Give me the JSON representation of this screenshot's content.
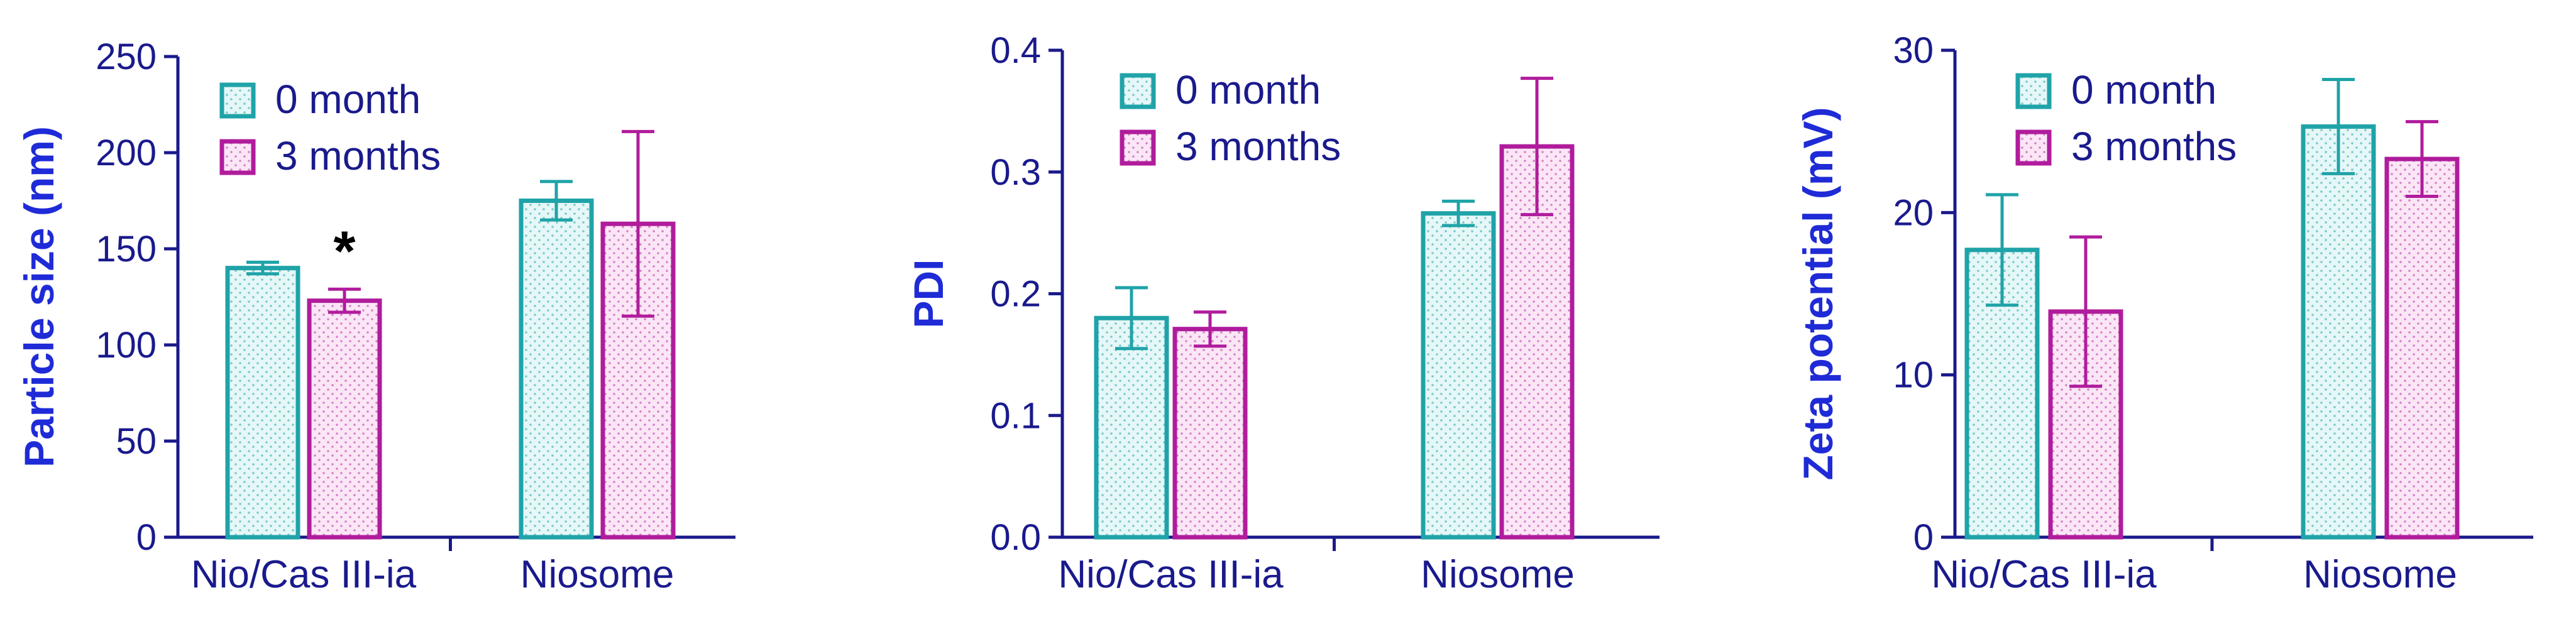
{
  "colors": {
    "axis": "#1a1a8c",
    "axis_title": "#1f2bd6",
    "series_0": "#1fa3a8",
    "series_1": "#b01c9c",
    "series_0_fill": "#e6f7f7",
    "series_1_fill": "#fbe6f6"
  },
  "chart_data": [
    {
      "type": "bar",
      "categories": [
        "Nio/Cas III-ia",
        "Niosome"
      ],
      "series": [
        {
          "name": "0 month",
          "values": [
            140,
            175
          ],
          "errors": [
            3,
            10
          ]
        },
        {
          "name": "3 months",
          "values": [
            123,
            163
          ],
          "errors": [
            6,
            48
          ]
        }
      ],
      "ylabel": "Particle size (nm)",
      "ylim": [
        0,
        250
      ],
      "yticks": [
        "0",
        "50",
        "100",
        "150",
        "200",
        "250"
      ],
      "yticks_values": [
        0,
        50,
        100,
        150,
        200,
        250
      ],
      "grid": false,
      "legend": "top-left",
      "annotations": [
        {
          "text": "*",
          "category": 0,
          "series": 1
        }
      ]
    },
    {
      "type": "bar",
      "categories": [
        "Nio/Cas III-ia",
        "Niosome"
      ],
      "series": [
        {
          "name": "0 month",
          "values": [
            0.18,
            0.266
          ],
          "errors": [
            0.025,
            0.01
          ]
        },
        {
          "name": "3 months",
          "values": [
            0.171,
            0.321
          ],
          "errors": [
            0.014,
            0.056
          ]
        }
      ],
      "ylabel": "PDI",
      "ylim": [
        0,
        0.4
      ],
      "yticks": [
        "0.0",
        "0.1",
        "0.2",
        "0.3",
        "0.4"
      ],
      "yticks_values": [
        0,
        0.1,
        0.2,
        0.3,
        0.4
      ],
      "grid": false,
      "legend": "top-left",
      "annotations": []
    },
    {
      "type": "bar",
      "categories": [
        "Nio/Cas III-ia",
        "Niosome"
      ],
      "series": [
        {
          "name": "0 month",
          "values": [
            17.7,
            25.3
          ],
          "errors": [
            3.4,
            2.9
          ]
        },
        {
          "name": "3 months",
          "values": [
            13.9,
            23.3
          ],
          "errors": [
            4.6,
            2.3
          ]
        }
      ],
      "ylabel": "Zeta potential (mV)",
      "ylim": [
        0,
        30
      ],
      "yticks": [
        "0",
        "10",
        "20",
        "30"
      ],
      "yticks_values": [
        0,
        10,
        20,
        30
      ],
      "grid": false,
      "legend": "top-left",
      "annotations": []
    }
  ]
}
